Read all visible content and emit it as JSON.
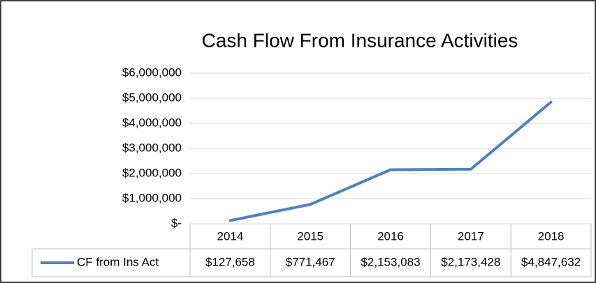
{
  "chart_data": {
    "type": "line",
    "title": "Cash Flow From Insurance Activities",
    "categories": [
      "2014",
      "2015",
      "2016",
      "2017",
      "2018"
    ],
    "series": [
      {
        "name": "CF from Ins Act",
        "color": "#4f81bd",
        "values": [
          127658,
          771467,
          2153083,
          2173428,
          4847632
        ],
        "value_labels": [
          "$127,658",
          "$771,467",
          "$2,153,083",
          "$2,173,428",
          "$4,847,632"
        ]
      }
    ],
    "ylim": [
      0,
      6000000
    ],
    "yticks": [
      {
        "value": 0,
        "label": "$-"
      },
      {
        "value": 1000000,
        "label": "$1,000,000"
      },
      {
        "value": 2000000,
        "label": "$2,000,000"
      },
      {
        "value": 3000000,
        "label": "$3,000,000"
      },
      {
        "value": 4000000,
        "label": "$4,000,000"
      },
      {
        "value": 5000000,
        "label": "$5,000,000"
      },
      {
        "value": 6000000,
        "label": "$6,000,000"
      }
    ],
    "grid": true,
    "data_table": true
  }
}
